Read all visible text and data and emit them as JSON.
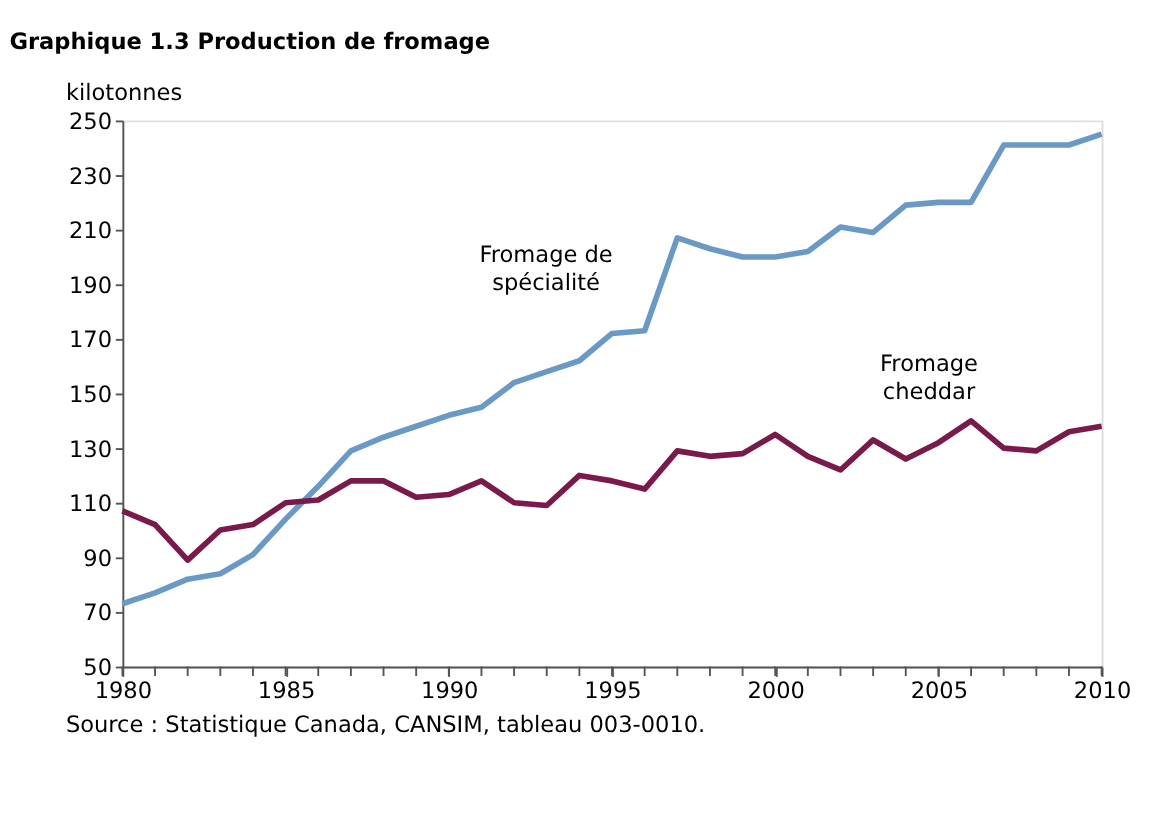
{
  "chart_data": {
    "type": "line",
    "title": "Graphique 1.3  Production de fromage",
    "ylabel": "kilotonnes",
    "x": [
      1980,
      1981,
      1982,
      1983,
      1984,
      1985,
      1986,
      1987,
      1988,
      1989,
      1990,
      1991,
      1992,
      1993,
      1994,
      1995,
      1996,
      1997,
      1998,
      1999,
      2000,
      2001,
      2002,
      2003,
      2004,
      2005,
      2006,
      2007,
      2008,
      2009,
      2010
    ],
    "series": [
      {
        "name": "Fromage de spécialité",
        "color": "#6a99c6",
        "values": [
          73,
          77,
          82,
          84,
          91,
          104,
          116,
          129,
          134,
          138,
          142,
          145,
          154,
          158,
          162,
          172,
          173,
          207,
          203,
          200,
          200,
          202,
          211,
          209,
          219,
          220,
          220,
          241,
          241,
          241,
          245
        ]
      },
      {
        "name": "Fromage cheddar",
        "color": "#7a1a4a",
        "values": [
          107,
          102,
          89,
          100,
          102,
          110,
          111,
          118,
          118,
          112,
          113,
          118,
          110,
          109,
          120,
          118,
          115,
          129,
          127,
          128,
          135,
          127,
          122,
          133,
          126,
          132,
          140,
          130,
          129,
          136,
          138
        ]
      }
    ],
    "xlim": [
      1980,
      2010
    ],
    "xticks": [
      1980,
      1985,
      1990,
      1995,
      2000,
      2005,
      2010
    ],
    "ylim": [
      50,
      250
    ],
    "yticks": [
      50,
      70,
      90,
      110,
      130,
      150,
      170,
      190,
      210,
      230,
      250
    ],
    "grid": false,
    "marker": "none",
    "line_style": "solid",
    "annotations": [
      "Source : Statistique Canada, CANSIM, tableau 003-0010."
    ]
  }
}
